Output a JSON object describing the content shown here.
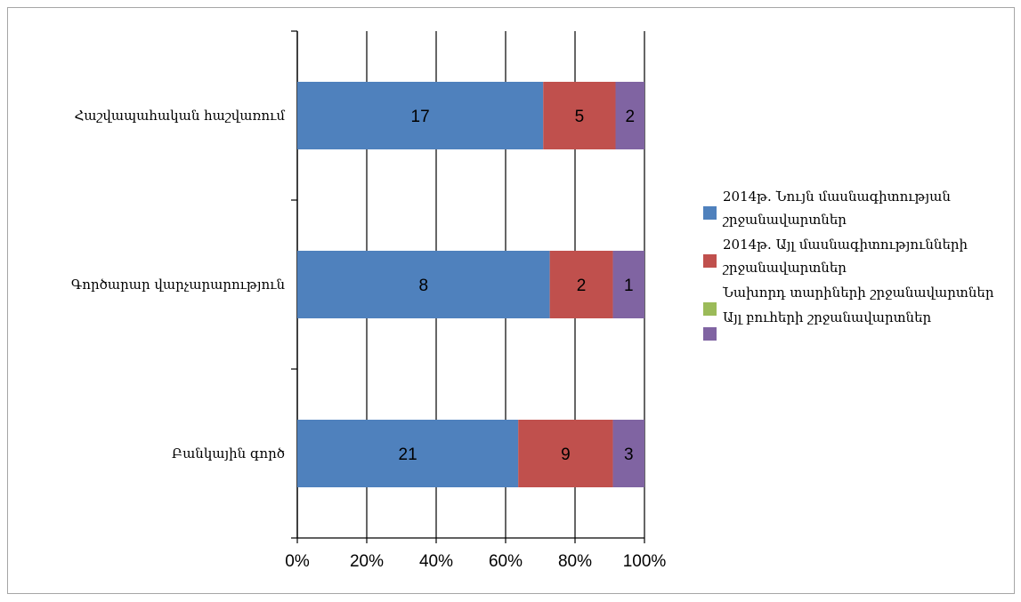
{
  "chart_data": {
    "type": "bar",
    "orientation": "horizontal",
    "stacking": "percent",
    "categories": [
      "Հաշվապահական հաշվառում",
      "Գործարար վարչարարություն",
      "Բանկային գործ"
    ],
    "series": [
      {
        "name": "2014թ. Նույն մասնագիտության շրջանավարտներ",
        "values": [
          17,
          8,
          21
        ],
        "color": "#4f81bd"
      },
      {
        "name": "2014թ. Այլ մասնագիտությունների շրջանավարտներ",
        "values": [
          5,
          2,
          9
        ],
        "color": "#c0504d"
      },
      {
        "name": "Նախորդ տարիների շրջանավարտներ",
        "values": [
          0,
          0,
          0
        ],
        "color": "#9bbb59"
      },
      {
        "name": "Այլ բուհերի շրջանավարտներ",
        "values": [
          2,
          1,
          3
        ],
        "color": "#8064a2"
      }
    ],
    "xticks": [
      "0%",
      "20%",
      "40%",
      "60%",
      "80%",
      "100%"
    ],
    "xlim": [
      0,
      100
    ],
    "grid": true,
    "legend": "right"
  }
}
